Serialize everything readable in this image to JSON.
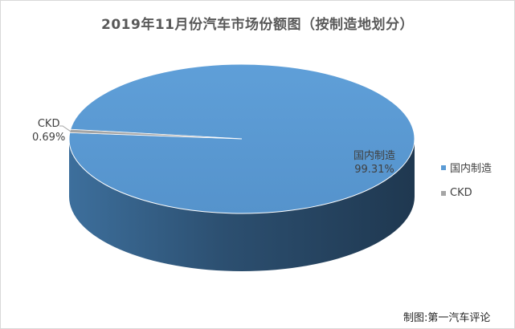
{
  "chart_data": {
    "type": "pie",
    "title": "2019年11月份汽车市场份额图（按制造地划分）",
    "slices": [
      {
        "label": "国内制造",
        "value": 99.31,
        "value_label": "99.31%"
      },
      {
        "label": "CKD",
        "value": 0.69,
        "value_label": "0.69%"
      }
    ],
    "legend": [
      "国内制造",
      "CKD"
    ],
    "legend_position": "right",
    "colors": {
      "国内制造": "#5b9bd5",
      "CKD": "#a5a5a5"
    },
    "style": "3d"
  },
  "source_note": "制图:第一汽车评论"
}
